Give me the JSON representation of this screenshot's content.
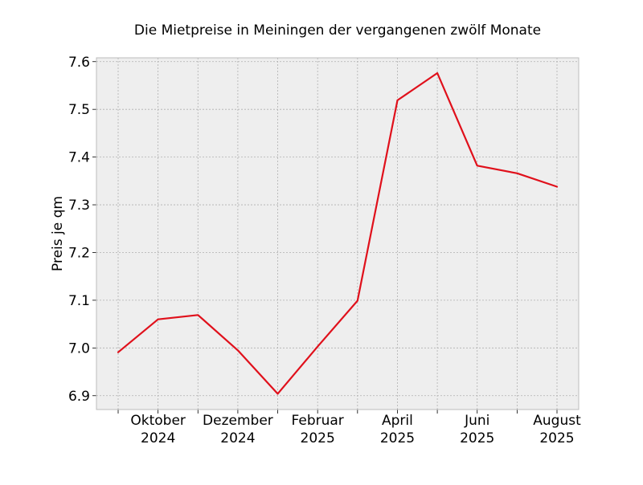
{
  "chart_data": {
    "type": "line",
    "title": "Die Mietpreise in Meiningen der vergangenen zwölf Monate",
    "xlabel": "",
    "ylabel": "Preis je qm",
    "ylim": [
      6.871,
      7.608
    ],
    "y_ticks": [
      6.9,
      7.0,
      7.1,
      7.2,
      7.3,
      7.4,
      7.5,
      7.6
    ],
    "y_tick_labels": [
      "6.9",
      "7.0",
      "7.1",
      "7.2",
      "7.3",
      "7.4",
      "7.5",
      "7.6"
    ],
    "x": [
      "2024-09",
      "2024-10",
      "2024-11",
      "2024-12",
      "2025-01",
      "2025-02",
      "2025-03",
      "2025-04",
      "2025-05",
      "2025-06",
      "2025-07",
      "2025-08"
    ],
    "x_tick_labels": [
      {
        "x": "2024-10",
        "line1": "Oktober",
        "line2": "2024"
      },
      {
        "x": "2024-12",
        "line1": "Dezember",
        "line2": "2024"
      },
      {
        "x": "2025-02",
        "line1": "Februar",
        "line2": "2025"
      },
      {
        "x": "2025-04",
        "line1": "April",
        "line2": "2025"
      },
      {
        "x": "2025-06",
        "line1": "Juni",
        "line2": "2025"
      },
      {
        "x": "2025-08",
        "line1": "August",
        "line2": "2025"
      }
    ],
    "series": [
      {
        "values": [
          6.991,
          7.06,
          7.069,
          6.995,
          6.904,
          7.003,
          7.099,
          7.519,
          7.576,
          7.382,
          7.366,
          7.338
        ]
      }
    ],
    "grid": true,
    "legend": "none",
    "colors": {
      "line": "#e0101b",
      "plot_background": "#eeeeee",
      "grid": "#b0b0b0",
      "spine": "#bcbcbc"
    }
  }
}
